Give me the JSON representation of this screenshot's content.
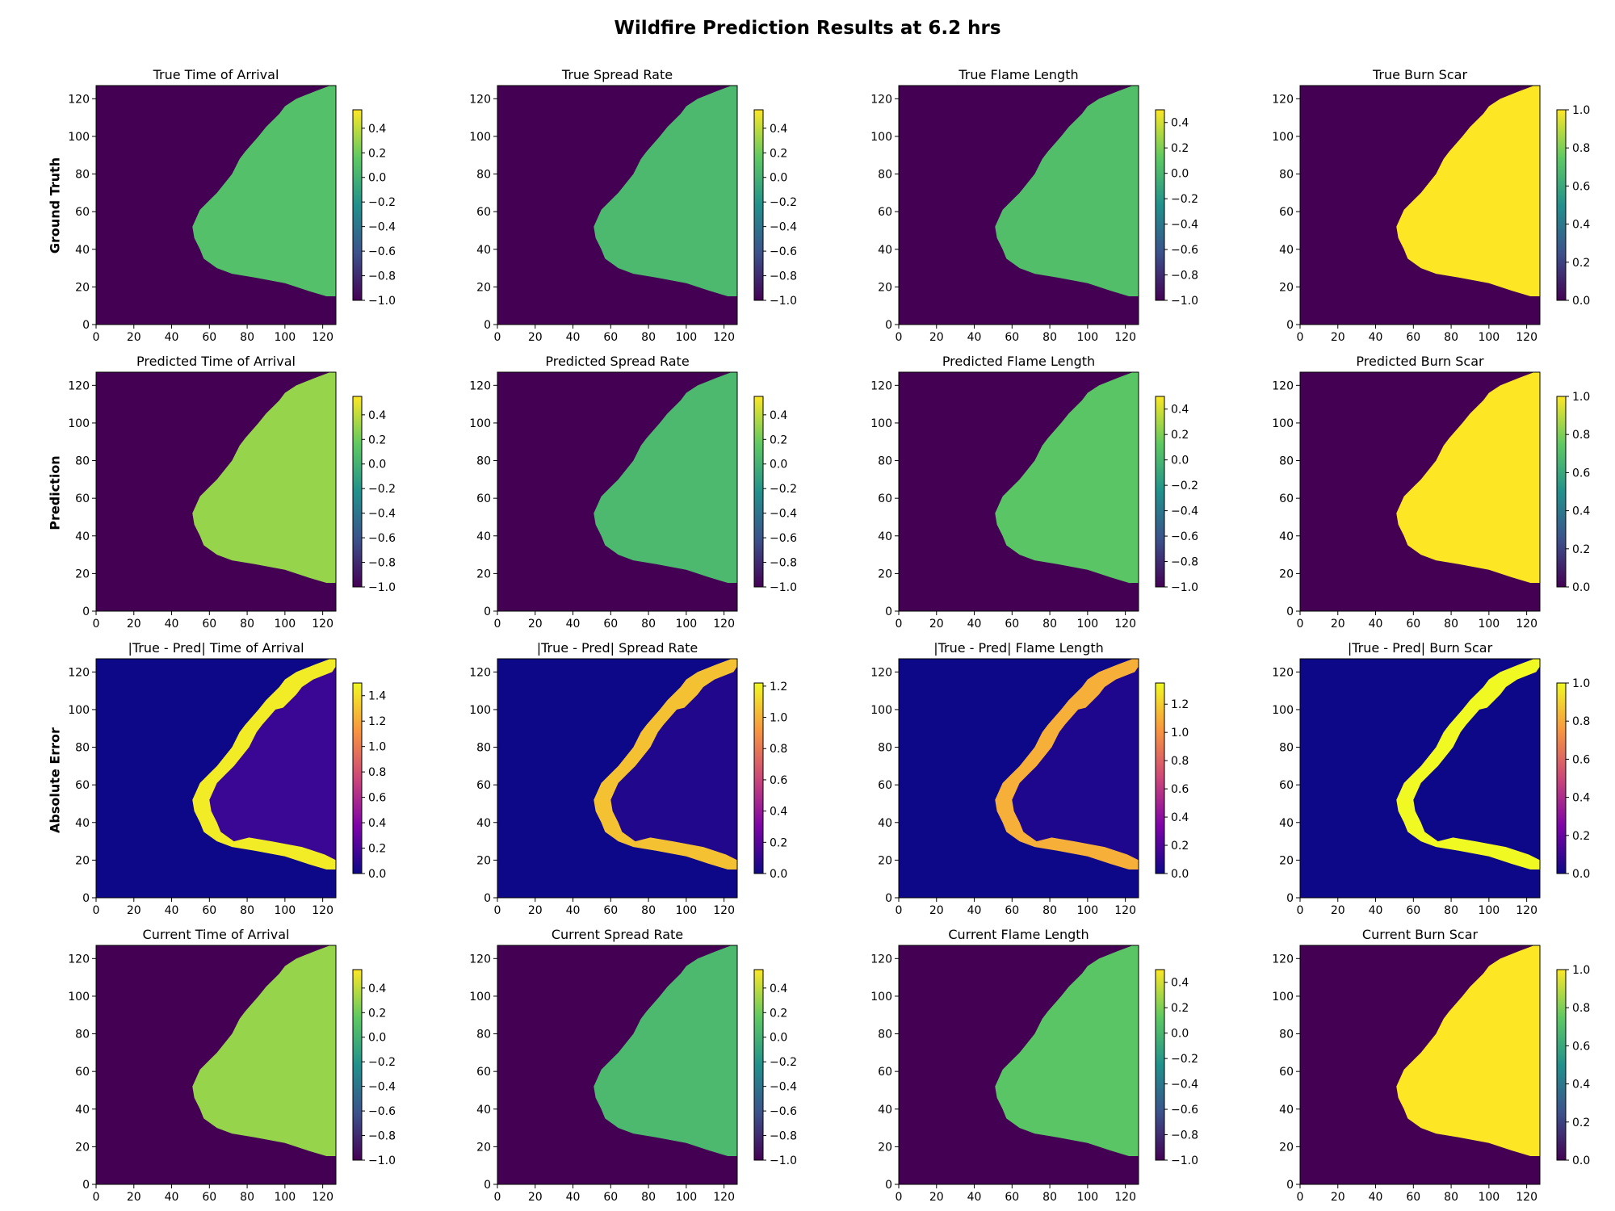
{
  "suptitle": "Wildfire Prediction Results at 6.2 hrs",
  "row_labels": [
    "Ground Truth",
    "Prediction",
    "Absolute Error",
    ""
  ],
  "colormaps": {
    "viridis": [
      "#440154",
      "#3b528b",
      "#21918c",
      "#5ec962",
      "#fde725"
    ],
    "plasma": [
      "#0d0887",
      "#7e03a8",
      "#cc4778",
      "#f89540",
      "#f0f921"
    ]
  },
  "chart_data": [
    {
      "type": "heatmap",
      "title": "True Time of Arrival",
      "xlim": [
        0,
        127
      ],
      "ylim": [
        0,
        127
      ],
      "xticks": [
        0,
        20,
        40,
        60,
        80,
        100,
        120
      ],
      "yticks": [
        0,
        20,
        40,
        60,
        80,
        100,
        120
      ],
      "colormap": "viridis",
      "clim": [
        -1.0,
        0.55
      ],
      "cticks": [
        0.4,
        0.2,
        0.0,
        -0.2,
        -0.4,
        -0.6,
        -0.8,
        -1.0
      ],
      "ctick_labels": [
        "0.4",
        "0.2",
        "0.0",
        "−0.2",
        "−0.4",
        "−0.6",
        "−0.8",
        "−1.0"
      ],
      "background_value": -1.0,
      "inside_value": 0.1
    },
    {
      "type": "heatmap",
      "title": "True Spread Rate",
      "xlim": [
        0,
        127
      ],
      "ylim": [
        0,
        127
      ],
      "xticks": [
        0,
        20,
        40,
        60,
        80,
        100,
        120
      ],
      "yticks": [
        0,
        20,
        40,
        60,
        80,
        100,
        120
      ],
      "colormap": "viridis",
      "clim": [
        -1.0,
        0.55
      ],
      "cticks": [
        0.4,
        0.2,
        0.0,
        -0.2,
        -0.4,
        -0.6,
        -0.8,
        -1.0
      ],
      "ctick_labels": [
        "0.4",
        "0.2",
        "0.0",
        "−0.2",
        "−0.4",
        "−0.6",
        "−0.8",
        "−1.0"
      ],
      "background_value": -1.0,
      "inside_value": 0.05
    },
    {
      "type": "heatmap",
      "title": "True Flame Length",
      "xlim": [
        0,
        127
      ],
      "ylim": [
        0,
        127
      ],
      "xticks": [
        0,
        20,
        40,
        60,
        80,
        100,
        120
      ],
      "yticks": [
        0,
        20,
        40,
        60,
        80,
        100,
        120
      ],
      "colormap": "viridis",
      "clim": [
        -1.0,
        0.5
      ],
      "cticks": [
        0.4,
        0.2,
        0.0,
        -0.2,
        -0.4,
        -0.6,
        -0.8,
        -1.0
      ],
      "ctick_labels": [
        "0.4",
        "0.2",
        "0.0",
        "−0.2",
        "−0.4",
        "−0.6",
        "−0.8",
        "−1.0"
      ],
      "background_value": -1.0,
      "inside_value": 0.05
    },
    {
      "type": "heatmap",
      "title": "True Burn Scar",
      "xlim": [
        0,
        127
      ],
      "ylim": [
        0,
        127
      ],
      "xticks": [
        0,
        20,
        40,
        60,
        80,
        100,
        120
      ],
      "yticks": [
        0,
        20,
        40,
        60,
        80,
        100,
        120
      ],
      "colormap": "viridis",
      "clim": [
        0.0,
        1.0
      ],
      "cticks": [
        1.0,
        0.8,
        0.6,
        0.4,
        0.2,
        0.0
      ],
      "ctick_labels": [
        "1.0",
        "0.8",
        "0.6",
        "0.4",
        "0.2",
        "0.0"
      ],
      "background_value": 0.0,
      "inside_value": 1.0
    },
    {
      "type": "heatmap",
      "title": "Predicted Time of Arrival",
      "xlim": [
        0,
        127
      ],
      "ylim": [
        0,
        127
      ],
      "xticks": [
        0,
        20,
        40,
        60,
        80,
        100,
        120
      ],
      "yticks": [
        0,
        20,
        40,
        60,
        80,
        100,
        120
      ],
      "colormap": "viridis",
      "clim": [
        -1.0,
        0.55
      ],
      "cticks": [
        0.4,
        0.2,
        0.0,
        -0.2,
        -0.4,
        -0.6,
        -0.8,
        -1.0
      ],
      "ctick_labels": [
        "0.4",
        "0.2",
        "0.0",
        "−0.2",
        "−0.4",
        "−0.6",
        "−0.8",
        "−1.0"
      ],
      "background_value": -1.0,
      "inside_value": 0.3
    },
    {
      "type": "heatmap",
      "title": "Predicted Spread Rate",
      "xlim": [
        0,
        127
      ],
      "ylim": [
        0,
        127
      ],
      "xticks": [
        0,
        20,
        40,
        60,
        80,
        100,
        120
      ],
      "yticks": [
        0,
        20,
        40,
        60,
        80,
        100,
        120
      ],
      "colormap": "viridis",
      "clim": [
        -1.0,
        0.55
      ],
      "cticks": [
        0.4,
        0.2,
        0.0,
        -0.2,
        -0.4,
        -0.6,
        -0.8,
        -1.0
      ],
      "ctick_labels": [
        "0.4",
        "0.2",
        "0.0",
        "−0.2",
        "−0.4",
        "−0.6",
        "−0.8",
        "−1.0"
      ],
      "background_value": -1.0,
      "inside_value": 0.05
    },
    {
      "type": "heatmap",
      "title": "Predicted Flame Length",
      "xlim": [
        0,
        127
      ],
      "ylim": [
        0,
        127
      ],
      "xticks": [
        0,
        20,
        40,
        60,
        80,
        100,
        120
      ],
      "yticks": [
        0,
        20,
        40,
        60,
        80,
        100,
        120
      ],
      "colormap": "viridis",
      "clim": [
        -1.0,
        0.5
      ],
      "cticks": [
        0.4,
        0.2,
        0.0,
        -0.2,
        -0.4,
        -0.6,
        -0.8,
        -1.0
      ],
      "ctick_labels": [
        "0.4",
        "0.2",
        "0.0",
        "−0.2",
        "−0.4",
        "−0.6",
        "−0.8",
        "−1.0"
      ],
      "background_value": -1.0,
      "inside_value": 0.1
    },
    {
      "type": "heatmap",
      "title": "Predicted Burn Scar",
      "xlim": [
        0,
        127
      ],
      "ylim": [
        0,
        127
      ],
      "xticks": [
        0,
        20,
        40,
        60,
        80,
        100,
        120
      ],
      "yticks": [
        0,
        20,
        40,
        60,
        80,
        100,
        120
      ],
      "colormap": "viridis",
      "clim": [
        0.0,
        1.0
      ],
      "cticks": [
        1.0,
        0.8,
        0.6,
        0.4,
        0.2,
        0.0
      ],
      "ctick_labels": [
        "1.0",
        "0.8",
        "0.6",
        "0.4",
        "0.2",
        "0.0"
      ],
      "background_value": 0.0,
      "inside_value": 1.0
    },
    {
      "type": "heatmap",
      "title": "|True - Pred| Time of Arrival",
      "xlim": [
        0,
        127
      ],
      "ylim": [
        0,
        127
      ],
      "xticks": [
        0,
        20,
        40,
        60,
        80,
        100,
        120
      ],
      "yticks": [
        0,
        20,
        40,
        60,
        80,
        100,
        120
      ],
      "colormap": "plasma",
      "clim": [
        0.0,
        1.5
      ],
      "cticks": [
        1.4,
        1.2,
        1.0,
        0.8,
        0.6,
        0.4,
        0.2,
        0.0
      ],
      "ctick_labels": [
        "1.4",
        "1.2",
        "1.0",
        "0.8",
        "0.6",
        "0.4",
        "0.2",
        "0.0"
      ],
      "background_value": 0.0,
      "inside_value": 0.15,
      "ring_value": 1.45
    },
    {
      "type": "heatmap",
      "title": "|True - Pred| Spread Rate",
      "xlim": [
        0,
        127
      ],
      "ylim": [
        0,
        127
      ],
      "xticks": [
        0,
        20,
        40,
        60,
        80,
        100,
        120
      ],
      "yticks": [
        0,
        20,
        40,
        60,
        80,
        100,
        120
      ],
      "colormap": "plasma",
      "clim": [
        0.0,
        1.22
      ],
      "cticks": [
        1.2,
        1.0,
        0.8,
        0.6,
        0.4,
        0.2,
        0.0
      ],
      "ctick_labels": [
        "1.2",
        "1.0",
        "0.8",
        "0.6",
        "0.4",
        "0.2",
        "0.0"
      ],
      "background_value": 0.0,
      "inside_value": 0.05,
      "ring_value": 1.05
    },
    {
      "type": "heatmap",
      "title": "|True - Pred| Flame Length",
      "xlim": [
        0,
        127
      ],
      "ylim": [
        0,
        127
      ],
      "xticks": [
        0,
        20,
        40,
        60,
        80,
        100,
        120
      ],
      "yticks": [
        0,
        20,
        40,
        60,
        80,
        100,
        120
      ],
      "colormap": "plasma",
      "clim": [
        0.0,
        1.35
      ],
      "cticks": [
        1.2,
        1.0,
        0.8,
        0.6,
        0.4,
        0.2,
        0.0
      ],
      "ctick_labels": [
        "1.2",
        "1.0",
        "0.8",
        "0.6",
        "0.4",
        "0.2",
        "0.0"
      ],
      "background_value": 0.0,
      "inside_value": 0.05,
      "ring_value": 1.1
    },
    {
      "type": "heatmap",
      "title": "|True - Pred| Burn Scar",
      "xlim": [
        0,
        127
      ],
      "ylim": [
        0,
        127
      ],
      "xticks": [
        0,
        20,
        40,
        60,
        80,
        100,
        120
      ],
      "yticks": [
        0,
        20,
        40,
        60,
        80,
        100,
        120
      ],
      "colormap": "plasma",
      "clim": [
        0.0,
        1.0
      ],
      "cticks": [
        1.0,
        0.8,
        0.6,
        0.4,
        0.2,
        0.0
      ],
      "ctick_labels": [
        "1.0",
        "0.8",
        "0.6",
        "0.4",
        "0.2",
        "0.0"
      ],
      "background_value": 0.0,
      "inside_value": 0.0,
      "ring_value": 1.0
    },
    {
      "type": "heatmap",
      "title": "Current Time of Arrival",
      "xlim": [
        0,
        127
      ],
      "ylim": [
        0,
        127
      ],
      "xticks": [
        0,
        20,
        40,
        60,
        80,
        100,
        120
      ],
      "yticks": [
        0,
        20,
        40,
        60,
        80,
        100,
        120
      ],
      "colormap": "viridis",
      "clim": [
        -1.0,
        0.55
      ],
      "cticks": [
        0.4,
        0.2,
        0.0,
        -0.2,
        -0.4,
        -0.6,
        -0.8,
        -1.0
      ],
      "ctick_labels": [
        "0.4",
        "0.2",
        "0.0",
        "−0.2",
        "−0.4",
        "−0.6",
        "−0.8",
        "−1.0"
      ],
      "background_value": -1.0,
      "inside_value": 0.3
    },
    {
      "type": "heatmap",
      "title": "Current Spread Rate",
      "xlim": [
        0,
        127
      ],
      "ylim": [
        0,
        127
      ],
      "xticks": [
        0,
        20,
        40,
        60,
        80,
        100,
        120
      ],
      "yticks": [
        0,
        20,
        40,
        60,
        80,
        100,
        120
      ],
      "colormap": "viridis",
      "clim": [
        -1.0,
        0.55
      ],
      "cticks": [
        0.4,
        0.2,
        0.0,
        -0.2,
        -0.4,
        -0.6,
        -0.8,
        -1.0
      ],
      "ctick_labels": [
        "0.4",
        "0.2",
        "0.0",
        "−0.2",
        "−0.4",
        "−0.6",
        "−0.8",
        "−1.0"
      ],
      "background_value": -1.0,
      "inside_value": 0.05
    },
    {
      "type": "heatmap",
      "title": "Current Flame Length",
      "xlim": [
        0,
        127
      ],
      "ylim": [
        0,
        127
      ],
      "xticks": [
        0,
        20,
        40,
        60,
        80,
        100,
        120
      ],
      "yticks": [
        0,
        20,
        40,
        60,
        80,
        100,
        120
      ],
      "colormap": "viridis",
      "clim": [
        -1.0,
        0.5
      ],
      "cticks": [
        0.4,
        0.2,
        0.0,
        -0.2,
        -0.4,
        -0.6,
        -0.8,
        -1.0
      ],
      "ctick_labels": [
        "0.4",
        "0.2",
        "0.0",
        "−0.2",
        "−0.4",
        "−0.6",
        "−0.8",
        "−1.0"
      ],
      "background_value": -1.0,
      "inside_value": 0.1
    },
    {
      "type": "heatmap",
      "title": "Current Burn Scar",
      "xlim": [
        0,
        127
      ],
      "ylim": [
        0,
        127
      ],
      "xticks": [
        0,
        20,
        40,
        60,
        80,
        100,
        120
      ],
      "yticks": [
        0,
        20,
        40,
        60,
        80,
        100,
        120
      ],
      "colormap": "viridis",
      "clim": [
        0.0,
        1.0
      ],
      "cticks": [
        1.0,
        0.8,
        0.6,
        0.4,
        0.2,
        0.0
      ],
      "ctick_labels": [
        "1.0",
        "0.8",
        "0.6",
        "0.4",
        "0.2",
        "0.0"
      ],
      "background_value": 0.0,
      "inside_value": 1.0
    }
  ]
}
